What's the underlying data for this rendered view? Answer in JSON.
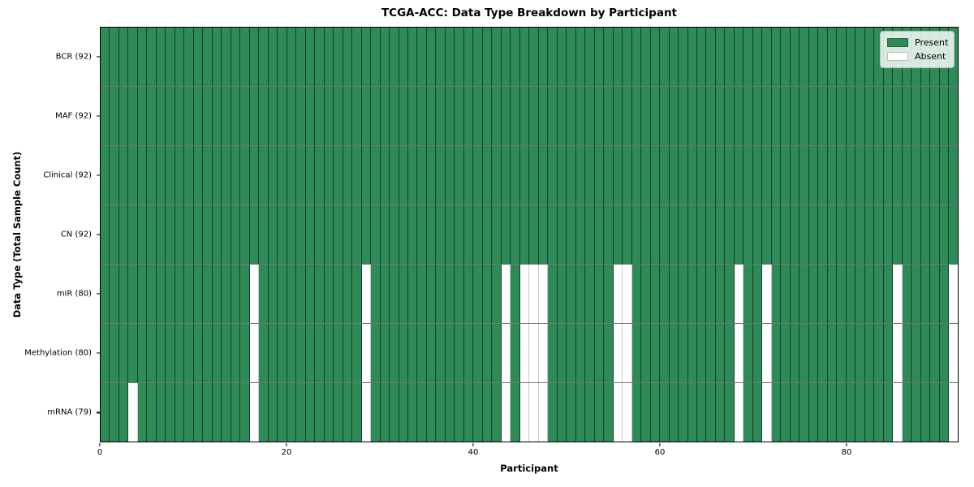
{
  "chart_data": {
    "type": "heatmap",
    "title": "TCGA-ACC: Data Type Breakdown by Participant",
    "xlabel": "Participant",
    "ylabel": "Data Type (Total Sample Count)",
    "n_participants": 92,
    "x_range": [
      0,
      92
    ],
    "x_ticks": [
      0,
      20,
      40,
      60,
      80
    ],
    "grid": true,
    "legend_position": "upper right",
    "colors": {
      "present": "#2e8b57",
      "absent": "#ffffff"
    },
    "legend": [
      {
        "label": "Present",
        "color": "#2e8b57"
      },
      {
        "label": "Absent",
        "color": "#ffffff"
      }
    ],
    "rows": [
      {
        "label": "BCR (92)",
        "data_type": "BCR",
        "present_count": 92,
        "absent_participants": []
      },
      {
        "label": "MAF (92)",
        "data_type": "MAF",
        "present_count": 92,
        "absent_participants": []
      },
      {
        "label": "Clinical (92)",
        "data_type": "Clinical",
        "present_count": 92,
        "absent_participants": []
      },
      {
        "label": "CN (92)",
        "data_type": "CN",
        "present_count": 92,
        "absent_participants": []
      },
      {
        "label": "miR (80)",
        "data_type": "miR",
        "present_count": 80,
        "absent_participants": [
          16,
          28,
          43,
          45,
          46,
          47,
          55,
          56,
          68,
          71,
          85,
          91
        ]
      },
      {
        "label": "Methylation (80)",
        "data_type": "Methylation",
        "present_count": 80,
        "absent_participants": [
          16,
          28,
          43,
          45,
          46,
          47,
          55,
          56,
          68,
          71,
          85,
          91
        ]
      },
      {
        "label": "mRNA (79)",
        "data_type": "mRNA",
        "present_count": 79,
        "absent_participants": [
          3,
          16,
          28,
          43,
          45,
          46,
          47,
          55,
          56,
          68,
          71,
          85,
          91
        ]
      }
    ]
  }
}
